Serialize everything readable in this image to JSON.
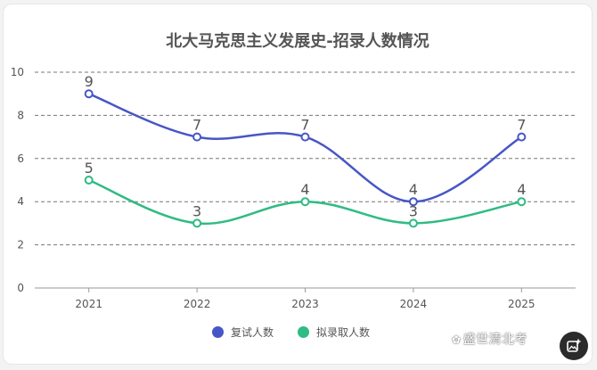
{
  "chart_data": {
    "type": "line",
    "title": "北大马克思主义发展史-招录人数情况",
    "categories": [
      "2021",
      "2022",
      "2023",
      "2024",
      "2025"
    ],
    "ylim": [
      0,
      10
    ],
    "yticks": [
      "0",
      "2",
      "4",
      "6",
      "8",
      "10"
    ],
    "grid": true,
    "smooth": true,
    "legend_position": "bottom-center",
    "series": [
      {
        "name": "复试人数",
        "values": [
          9,
          7,
          7,
          4,
          7
        ],
        "color": "#4756c6"
      },
      {
        "name": "拟录取人数",
        "values": [
          5,
          3,
          4,
          3,
          4
        ],
        "color": "#2fbb84"
      }
    ]
  },
  "watermark": {
    "text": "盛世清北考",
    "icon": "paw-icon"
  },
  "image_button": {
    "icon": "image-add-icon"
  }
}
